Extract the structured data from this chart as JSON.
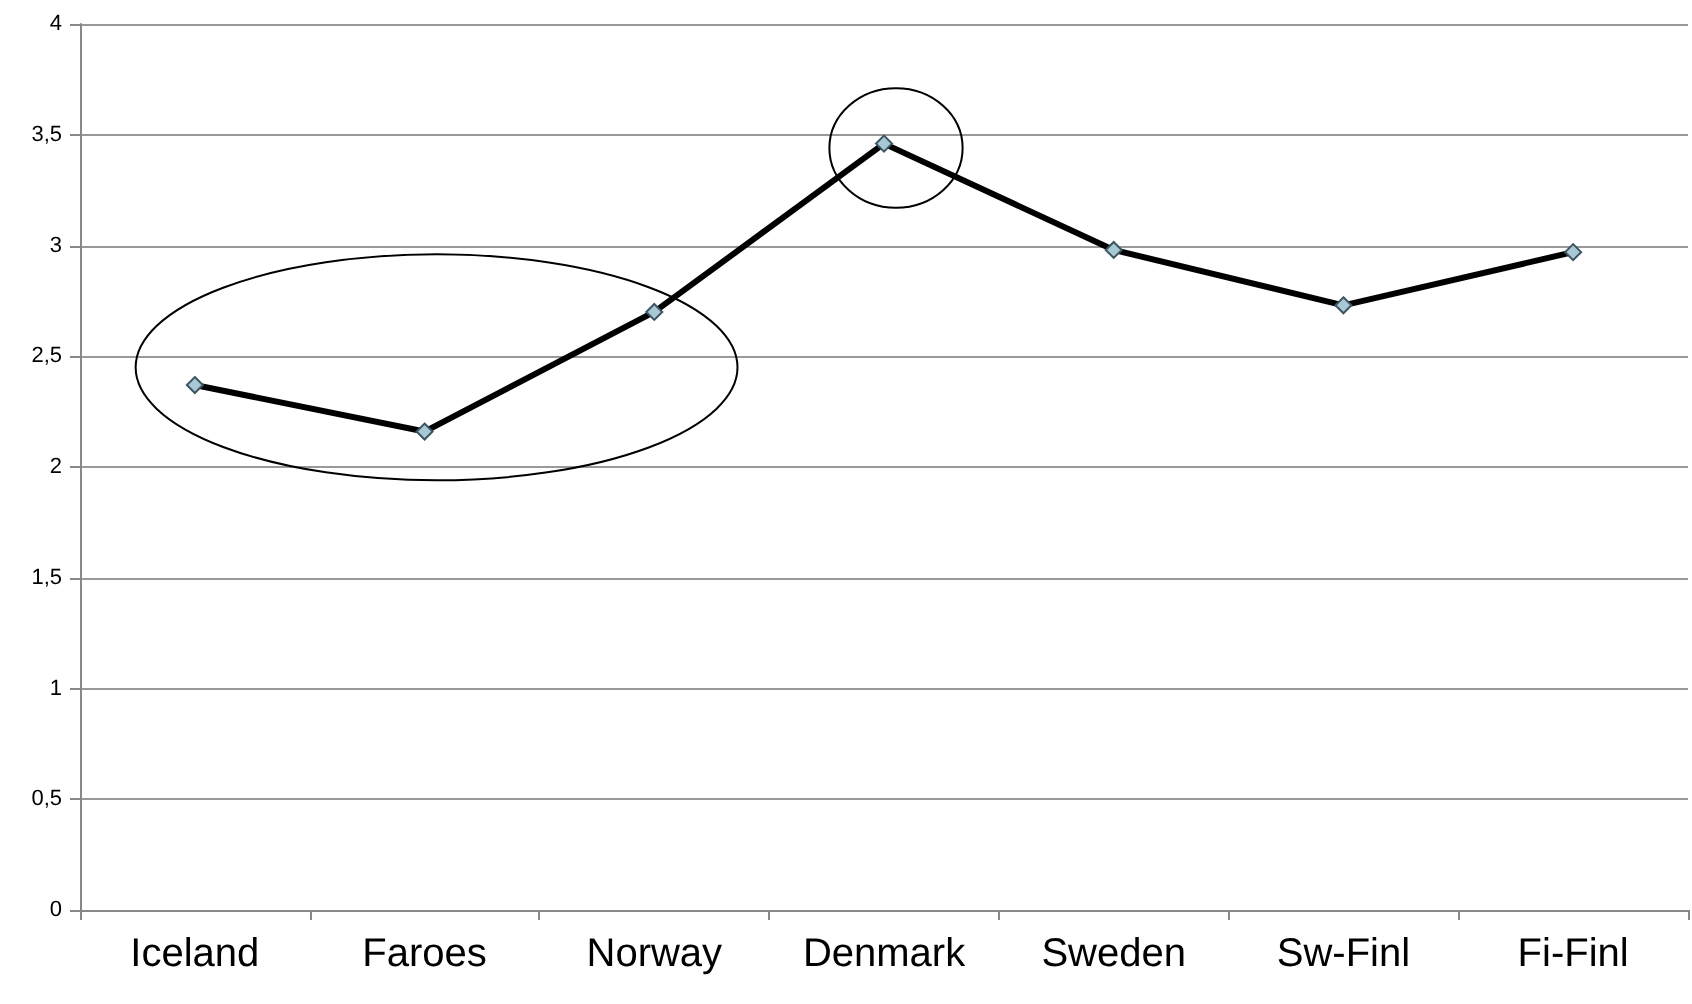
{
  "chart_data": {
    "type": "line",
    "categories": [
      "Iceland",
      "Faroes",
      "Norway",
      "Denmark",
      "Sweden",
      "Sw-Finl",
      "Fi-Finl"
    ],
    "series": [
      {
        "color": "#000000",
        "values": [
          2.37,
          2.16,
          2.7,
          3.46,
          2.98,
          2.73,
          2.97
        ]
      }
    ],
    "ylim": [
      0,
      4
    ],
    "yticks": [
      0,
      {
        "value": 0.5,
        "label": "0,5"
      },
      1,
      {
        "value": 1.5,
        "label": "1,5"
      },
      2,
      {
        "value": 2.5,
        "label": "2,5"
      },
      3,
      {
        "value": 3.5,
        "label": "3,5"
      },
      4
    ],
    "grid": "y",
    "marker": "diamond",
    "line_style": "solid"
  }
}
